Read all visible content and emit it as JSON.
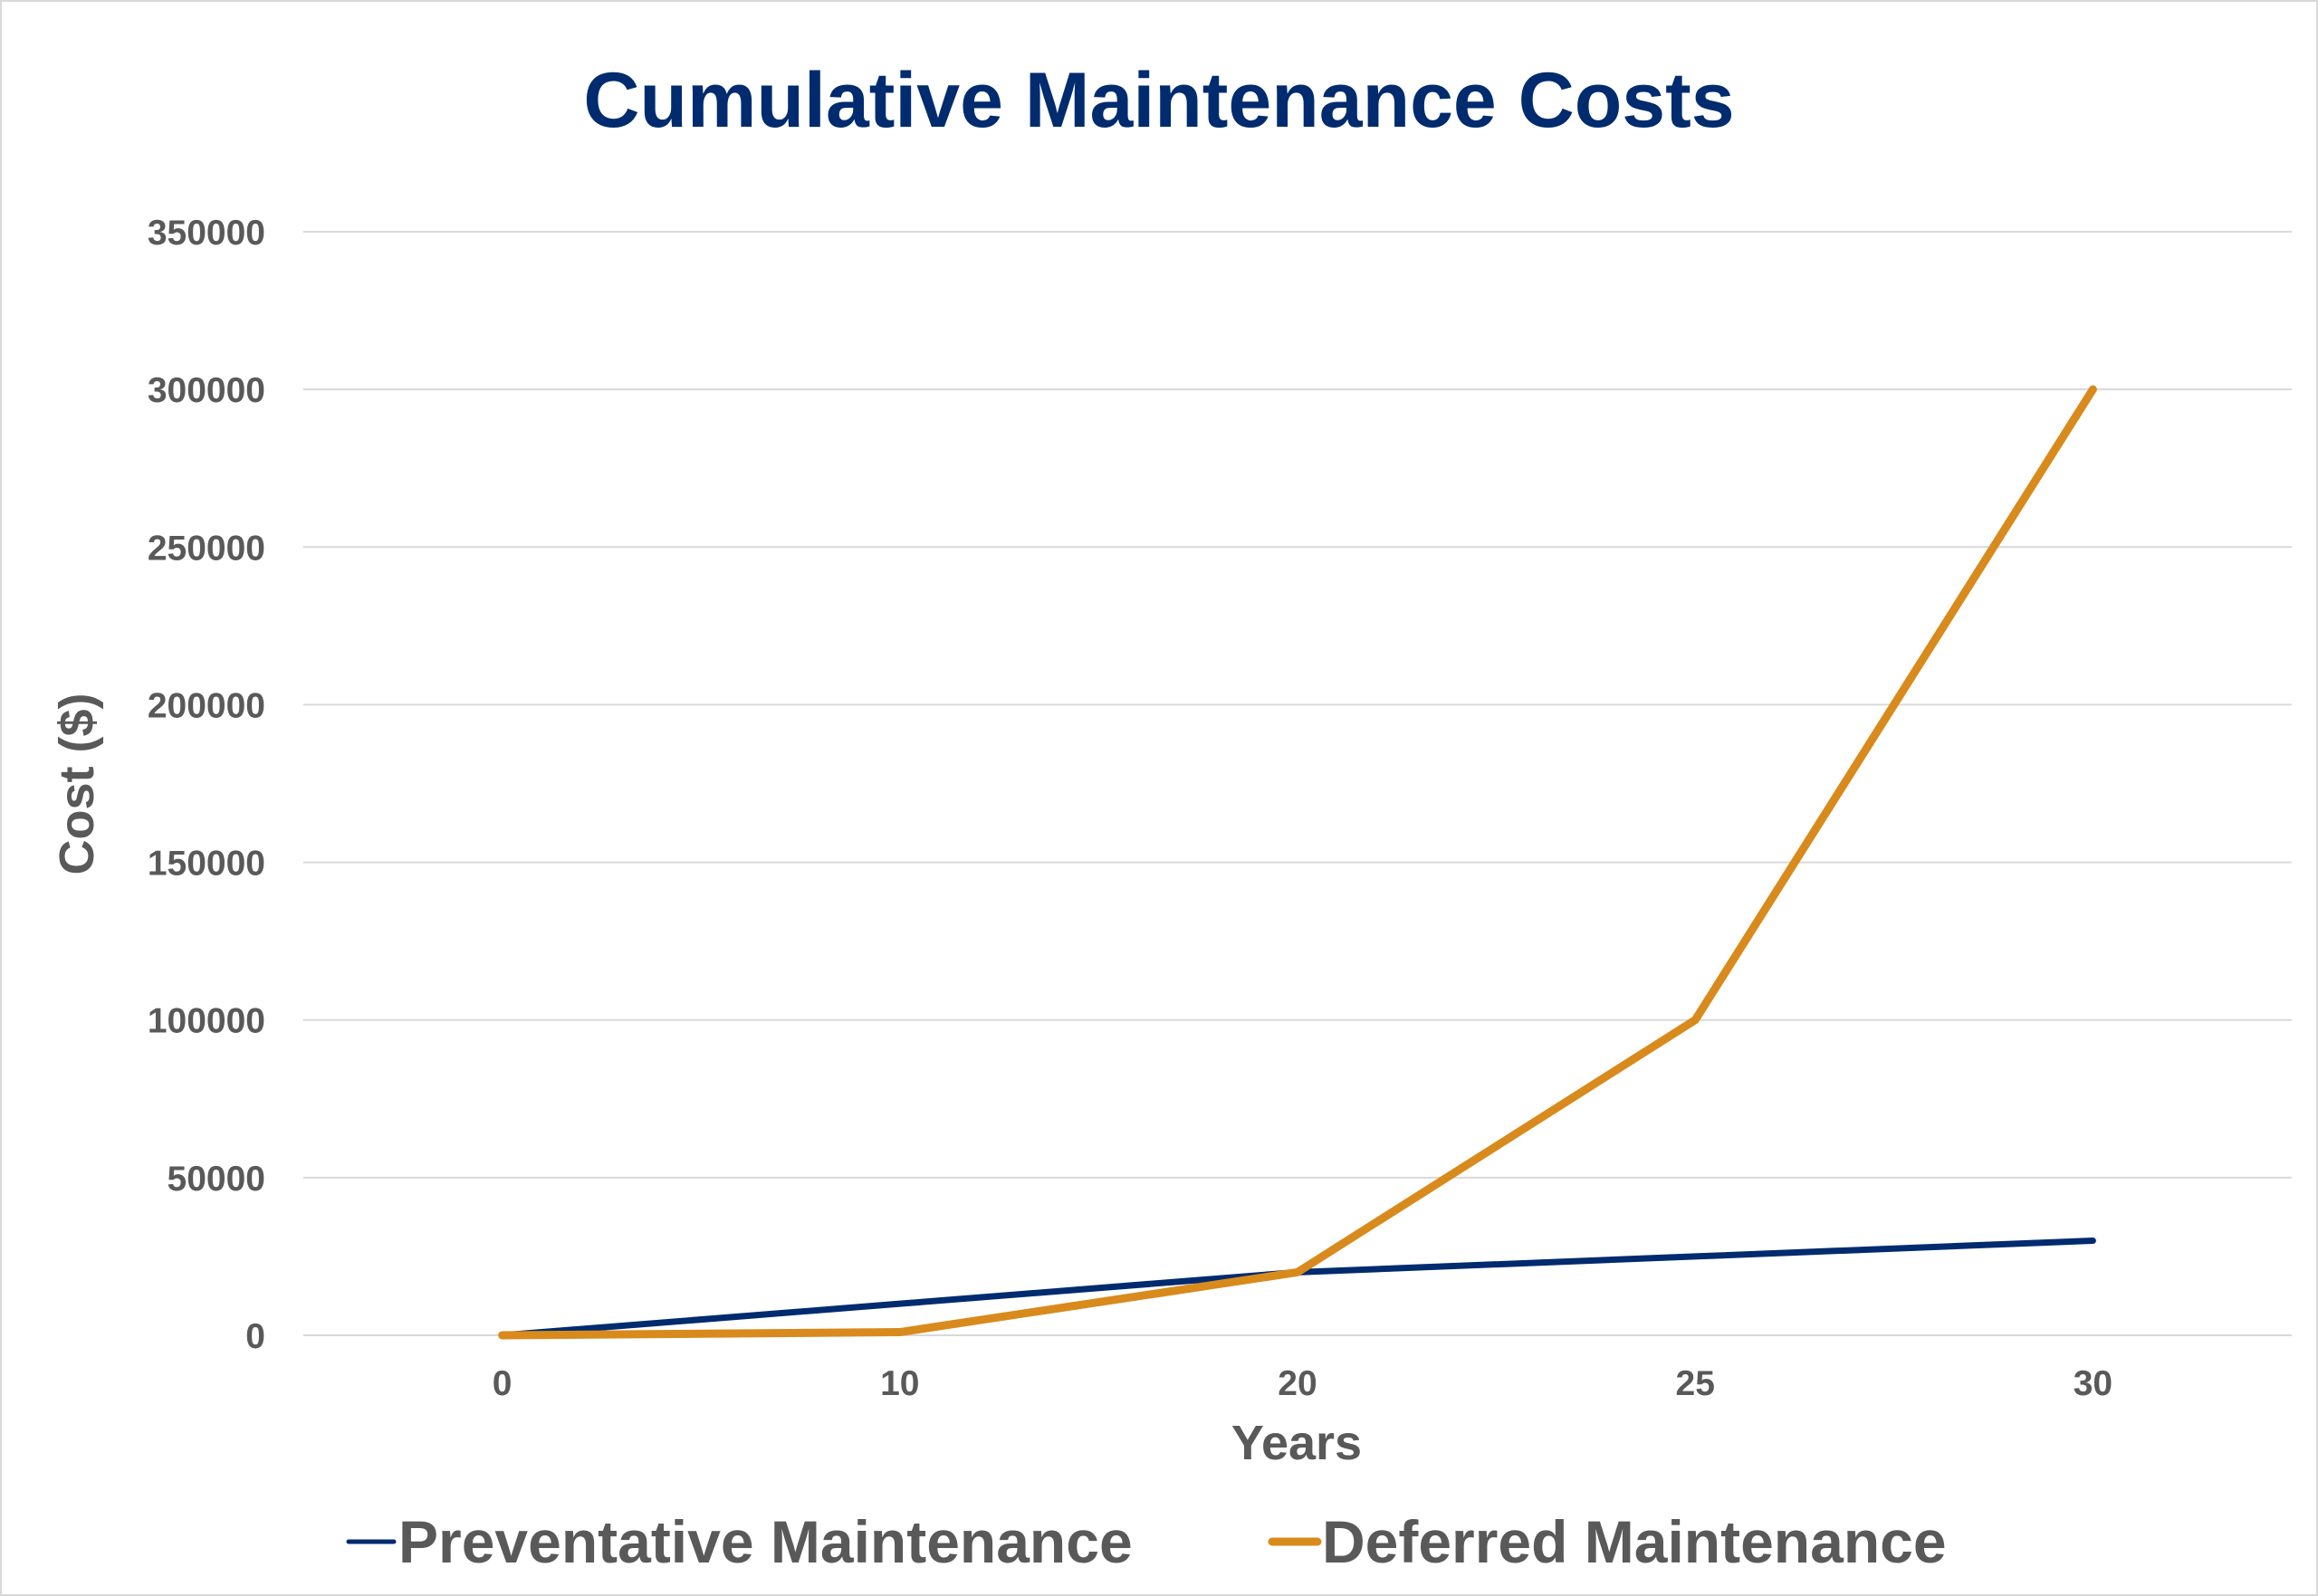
{
  "chart_data": {
    "type": "line",
    "title": "Cumulative Maintenance Costs",
    "xlabel": "Years",
    "ylabel": "Cost ($)",
    "categories": [
      "0",
      "10",
      "20",
      "25",
      "30"
    ],
    "ylim": [
      0,
      350000
    ],
    "yticks": [
      "0",
      "50000",
      "100000",
      "150000",
      "200000",
      "250000",
      "300000",
      "350000"
    ],
    "grid": true,
    "legend_position": "bottom",
    "series": [
      {
        "name": "Preventative Maintenance",
        "color": "#002b6e",
        "values": [
          0,
          10000,
          20000,
          25000,
          30000
        ]
      },
      {
        "name": "Deferred Maintenance",
        "color": "#d98a1c",
        "values": [
          0,
          1000,
          20000,
          100000,
          300000
        ]
      }
    ]
  }
}
